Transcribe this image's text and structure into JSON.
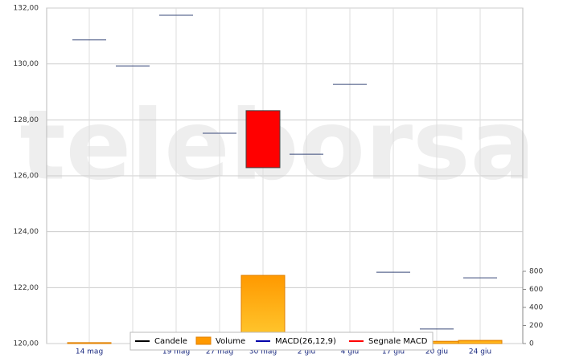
{
  "chart_data": {
    "type": "candlestick",
    "watermark": "teleborsa",
    "categories": [
      "14 mag",
      null,
      "19 mag",
      "27 mag",
      "30 mag",
      "2 giu",
      "4 giu",
      "17 giu",
      "20 giu",
      "24 giu"
    ],
    "open": [
      130.86,
      129.93,
      131.74,
      127.52,
      128.33,
      126.77,
      129.27,
      122.55,
      120.52,
      122.35
    ],
    "close": [
      130.86,
      129.93,
      131.74,
      127.52,
      126.29,
      126.77,
      129.27,
      122.55,
      120.52,
      122.35
    ],
    "up_color": "#00aa00",
    "down_color": "#ff0000",
    "flat_color": "#3a4a7a",
    "volume": {
      "name": "Volume",
      "color": "#ff9900",
      "axis": "y2",
      "values": [
        10,
        0,
        0,
        0,
        755,
        0,
        0,
        0,
        25,
        35
      ]
    },
    "legend": [
      {
        "name": "Candele",
        "color": "#000000"
      },
      {
        "name": "Volume",
        "color": "#ff9900"
      },
      {
        "name": "MACD(26,12,9)",
        "color": "#0000aa"
      },
      {
        "name": "Segnale MACD",
        "color": "#ff0000"
      }
    ],
    "ylim": [
      120,
      132
    ],
    "yticks": [
      {
        "value": 120,
        "label": "120,00"
      },
      {
        "value": 122,
        "label": "122,00"
      },
      {
        "value": 124,
        "label": "124,00"
      },
      {
        "value": 126,
        "label": "126,00"
      },
      {
        "value": 128,
        "label": "128,00"
      },
      {
        "value": 130,
        "label": "130,00"
      },
      {
        "value": 132,
        "label": "132,00"
      }
    ],
    "y2lim": [
      0,
      800
    ],
    "y2ticks": [
      0,
      200,
      400,
      600,
      800
    ],
    "grid": true
  }
}
